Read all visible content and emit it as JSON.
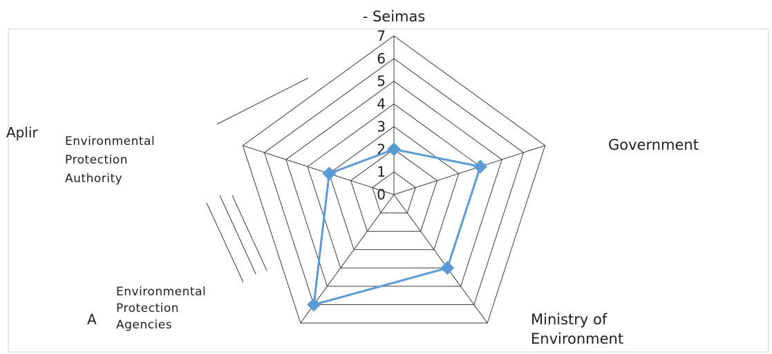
{
  "chart_data": {
    "type": "radar",
    "title": "",
    "categories": [
      "- Seimas",
      "Government",
      "Ministry of Environment",
      "Environmental Protection Agencies",
      "Environmental Protection Authority"
    ],
    "category_lines": [
      [
        "- Seimas"
      ],
      [
        "Government"
      ],
      [
        "Ministry of",
        "Environment"
      ],
      [
        "Environmental",
        "Protection",
        "Agencies"
      ],
      [
        "Environmental",
        "Protection",
        "Authority"
      ]
    ],
    "series": [
      {
        "values": [
          2,
          4,
          4,
          6,
          3
        ],
        "color": "#5b9bd5"
      }
    ],
    "rlim": [
      0,
      7
    ],
    "ticks": [
      0,
      1,
      2,
      3,
      4,
      5,
      6,
      7
    ],
    "grid": true,
    "legend": "none",
    "extra_labels": [
      "Aplir",
      "A"
    ]
  }
}
